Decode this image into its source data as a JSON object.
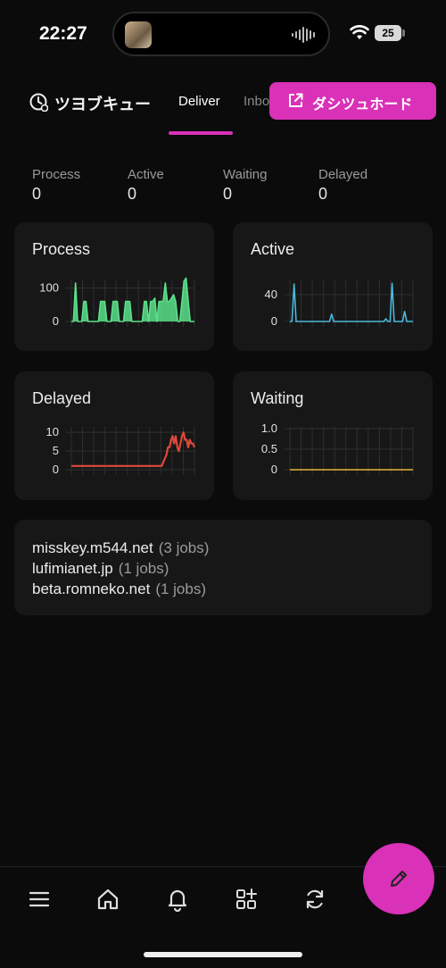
{
  "status_bar": {
    "time": "22:27",
    "battery": "25"
  },
  "header": {
    "title": "ツヨブキュー",
    "tabs": [
      {
        "label": "Deliver",
        "active": true
      },
      {
        "label": "Inbox",
        "active": false
      }
    ],
    "dashboard_button": "ダシツュホード"
  },
  "stats": [
    {
      "label": "Process",
      "value": "0"
    },
    {
      "label": "Active",
      "value": "0"
    },
    {
      "label": "Waiting",
      "value": "0"
    },
    {
      "label": "Delayed",
      "value": "0"
    }
  ],
  "colors": {
    "accent": "#d931b8",
    "process": "#5be08a",
    "active": "#4ab8dc",
    "delayed": "#e0483a",
    "waiting": "#e6b43c"
  },
  "chart_data": [
    {
      "type": "area",
      "title": "Process",
      "ylim": [
        0,
        120
      ],
      "yticks": [
        "100",
        "0"
      ],
      "x": [
        0,
        1,
        2,
        3,
        4,
        5,
        6,
        7,
        8,
        9,
        10,
        11,
        12,
        13,
        14,
        15,
        16,
        17,
        18,
        19,
        20,
        21,
        22,
        23,
        24,
        25,
        26,
        27,
        28,
        29,
        30,
        31,
        32,
        33,
        34,
        35,
        36,
        37,
        38,
        39,
        40,
        41,
        42,
        43,
        44,
        45,
        46,
        47,
        48,
        49,
        50,
        51,
        52,
        53,
        54,
        55,
        56,
        57,
        58,
        59
      ],
      "values": [
        0,
        0,
        115,
        0,
        0,
        0,
        60,
        60,
        0,
        0,
        0,
        0,
        0,
        0,
        60,
        60,
        60,
        0,
        0,
        0,
        60,
        60,
        60,
        0,
        0,
        0,
        60,
        60,
        60,
        0,
        0,
        0,
        0,
        0,
        0,
        60,
        60,
        0,
        60,
        60,
        70,
        0,
        60,
        60,
        60,
        115,
        60,
        60,
        70,
        80,
        60,
        0,
        0,
        60,
        120,
        130,
        60,
        0,
        0,
        0
      ],
      "grid": true
    },
    {
      "type": "line",
      "title": "Active",
      "ylim": [
        0,
        60
      ],
      "yticks": [
        "40",
        "0"
      ],
      "x": [
        0,
        1,
        2,
        3,
        4,
        5,
        6,
        7,
        8,
        9,
        10,
        11,
        12,
        13,
        14,
        15,
        16,
        17,
        18,
        19,
        20,
        21,
        22,
        23,
        24,
        25,
        26,
        27,
        28,
        29,
        30,
        31,
        32,
        33,
        34,
        35,
        36,
        37,
        38,
        39,
        40,
        41,
        42,
        43,
        44,
        45,
        46,
        47,
        48,
        49,
        50,
        51,
        52,
        53,
        54,
        55,
        56,
        57,
        58,
        59
      ],
      "values": [
        0,
        0,
        56,
        0,
        0,
        0,
        0,
        0,
        0,
        0,
        0,
        0,
        0,
        0,
        0,
        0,
        0,
        0,
        0,
        0,
        11,
        0,
        0,
        0,
        0,
        0,
        0,
        0,
        0,
        0,
        0,
        0,
        0,
        0,
        0,
        0,
        0,
        0,
        0,
        0,
        0,
        0,
        0,
        0,
        0,
        0,
        4,
        0,
        0,
        57,
        0,
        0,
        0,
        0,
        0,
        15,
        0,
        0,
        0,
        0
      ],
      "grid": true
    },
    {
      "type": "line",
      "title": "Delayed",
      "ylim": [
        0,
        11
      ],
      "yticks": [
        "10",
        "5",
        "0"
      ],
      "x": [
        0,
        1,
        2,
        3,
        4,
        5,
        6,
        7,
        8,
        9,
        10,
        11,
        12,
        13,
        14,
        15,
        16,
        17,
        18,
        19,
        20,
        21,
        22,
        23,
        24,
        25,
        26,
        27,
        28,
        29,
        30,
        31,
        32,
        33,
        34,
        35,
        36,
        37,
        38,
        39,
        40,
        41,
        42,
        43,
        44,
        45,
        46,
        47,
        48,
        49,
        50,
        51,
        52,
        53,
        54,
        55,
        56,
        57,
        58,
        59,
        60,
        61,
        62,
        63,
        64,
        65,
        66,
        67,
        68,
        69,
        70,
        71,
        72,
        73,
        74,
        75,
        76,
        77,
        78,
        79
      ],
      "values": [
        1,
        1,
        1,
        1,
        1,
        1,
        1,
        1,
        1,
        1,
        1,
        1,
        1,
        1,
        1,
        1,
        1,
        1,
        1,
        1,
        1,
        1,
        1,
        1,
        1,
        1,
        1,
        1,
        1,
        1,
        1,
        1,
        1,
        1,
        1,
        1,
        1,
        1,
        1,
        1,
        1,
        1,
        1,
        1,
        1,
        1,
        1,
        1,
        1,
        1,
        1,
        1,
        1,
        1,
        1,
        1,
        1,
        1,
        1,
        2,
        3,
        4,
        6,
        6,
        8,
        9,
        7,
        9,
        6,
        5,
        7,
        9,
        10,
        8,
        8,
        6,
        8,
        7,
        7,
        6
      ],
      "grid": true
    },
    {
      "type": "line",
      "title": "Waiting",
      "ylim": [
        0,
        1.0
      ],
      "yticks": [
        "1.0",
        "0.5",
        "0"
      ],
      "x": [
        0,
        1,
        2,
        3,
        4,
        5,
        6,
        7,
        8,
        9,
        10,
        11,
        12,
        13,
        14,
        15,
        16,
        17,
        18,
        19
      ],
      "values": [
        0,
        0,
        0,
        0,
        0,
        0,
        0,
        0,
        0,
        0,
        0,
        0,
        0,
        0,
        0,
        0,
        0,
        0,
        0,
        0
      ],
      "grid": true
    }
  ],
  "queue": [
    {
      "host": "misskey.m544.net",
      "jobs": "(3 jobs)"
    },
    {
      "host": "lufimianet.jp",
      "jobs": "(1 jobs)"
    },
    {
      "host": "beta.romneko.net",
      "jobs": "(1 jobs)"
    }
  ],
  "nav": {
    "items": [
      {
        "icon": "menu-icon"
      },
      {
        "icon": "home-icon"
      },
      {
        "icon": "bell-icon"
      },
      {
        "icon": "widgets-icon"
      },
      {
        "icon": "refresh-icon"
      }
    ],
    "fab_icon": "pencil-icon"
  }
}
